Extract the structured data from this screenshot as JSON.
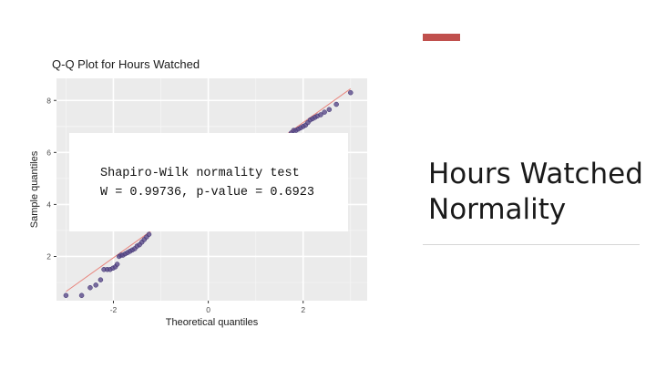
{
  "slide": {
    "title_line1": "Hours Watched",
    "title_line2": "Normality",
    "accent_color": "#c0504d"
  },
  "chart_data": {
    "type": "scatter",
    "title": "Q-Q Plot for Hours Watched",
    "xlabel": "Theoretical quantiles",
    "ylabel": "Sample quantiles",
    "xlim": [
      -3.2,
      3.35
    ],
    "ylim": [
      0.3,
      8.85
    ],
    "x_ticks": [
      -2,
      0,
      2
    ],
    "y_ticks": [
      2,
      4,
      6,
      8
    ],
    "grid": true,
    "panel_background": "#ebebeb",
    "point_color": "#5a4a8a",
    "reference_line_color": "#e8847c",
    "reference_line": {
      "x": [
        -3.0,
        3.0
      ],
      "y": [
        0.65,
        8.45
      ]
    },
    "annotation": {
      "line1": "Shapiro-Wilk normality test",
      "line2": "W = 0.99736, p-value = 0.6923"
    },
    "points": [
      [
        -3.0,
        0.5
      ],
      [
        -2.67,
        0.5
      ],
      [
        -2.49,
        0.8
      ],
      [
        -2.37,
        0.9
      ],
      [
        -2.27,
        1.1
      ],
      [
        -2.2,
        1.5
      ],
      [
        -2.13,
        1.5
      ],
      [
        -2.07,
        1.5
      ],
      [
        -2.01,
        1.55
      ],
      [
        -1.96,
        1.6
      ],
      [
        -1.92,
        1.7
      ],
      [
        -1.88,
        2.0
      ],
      [
        -1.84,
        2.05
      ],
      [
        -1.8,
        2.05
      ],
      [
        -1.75,
        2.1
      ],
      [
        -1.7,
        2.15
      ],
      [
        -1.65,
        2.2
      ],
      [
        -1.6,
        2.25
      ],
      [
        -1.55,
        2.3
      ],
      [
        -1.5,
        2.4
      ],
      [
        -1.45,
        2.45
      ],
      [
        -1.4,
        2.55
      ],
      [
        -1.35,
        2.65
      ],
      [
        -1.3,
        2.75
      ],
      [
        -1.25,
        2.85
      ],
      [
        1.7,
        6.65
      ],
      [
        1.75,
        6.75
      ],
      [
        1.8,
        6.85
      ],
      [
        1.85,
        6.85
      ],
      [
        1.9,
        6.9
      ],
      [
        1.95,
        6.95
      ],
      [
        2.0,
        7.0
      ],
      [
        2.05,
        7.05
      ],
      [
        2.1,
        7.15
      ],
      [
        2.15,
        7.25
      ],
      [
        2.2,
        7.3
      ],
      [
        2.25,
        7.35
      ],
      [
        2.3,
        7.4
      ],
      [
        2.37,
        7.45
      ],
      [
        2.45,
        7.55
      ],
      [
        2.55,
        7.65
      ],
      [
        2.7,
        7.85
      ],
      [
        3.0,
        8.3
      ]
    ]
  }
}
